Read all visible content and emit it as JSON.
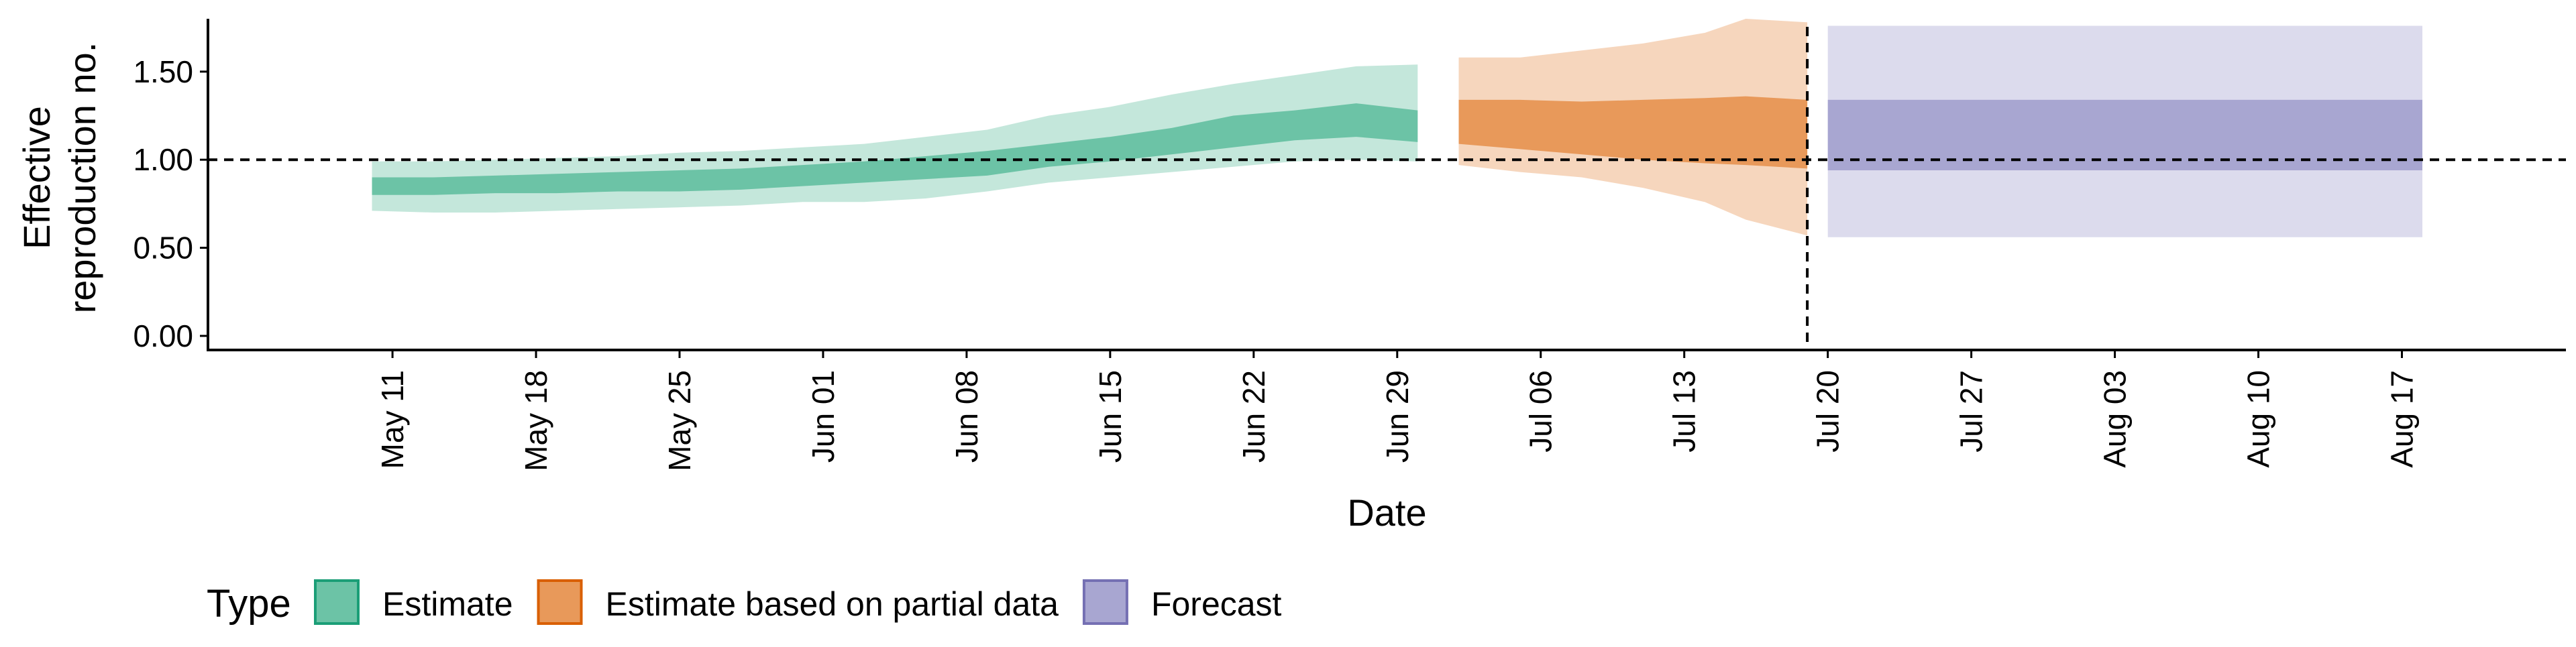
{
  "chart_data": {
    "type": "area",
    "title": "",
    "xlabel": "Date",
    "ylabel_lines": [
      "Effective",
      "reproduction no."
    ],
    "ylim": [
      -0.08,
      1.8
    ],
    "y_ticks": [
      0.0,
      0.5,
      1.0,
      1.5
    ],
    "y_tick_labels": [
      "0.00",
      "0.50",
      "1.00",
      "1.50"
    ],
    "xlim": [
      "2020-05-02",
      "2020-08-25"
    ],
    "x_ticks": [
      "2020-05-11",
      "2020-05-18",
      "2020-05-25",
      "2020-06-01",
      "2020-06-08",
      "2020-06-15",
      "2020-06-22",
      "2020-06-29",
      "2020-07-06",
      "2020-07-13",
      "2020-07-20",
      "2020-07-27",
      "2020-08-03",
      "2020-08-10",
      "2020-08-17"
    ],
    "x_tick_labels": [
      "May 11",
      "May 18",
      "May 25",
      "Jun 01",
      "Jun 08",
      "Jun 15",
      "Jun 22",
      "Jun 29",
      "Jul 06",
      "Jul 13",
      "Jul 20",
      "Jul 27",
      "Aug 03",
      "Aug 10",
      "Aug 17"
    ],
    "reference_line_y": 1.0,
    "vertical_line_x": "2020-07-19",
    "grid": false,
    "legend": {
      "title": "Type",
      "position": "bottom-left",
      "entries": [
        "Estimate",
        "Estimate based on partial data",
        "Forecast"
      ]
    },
    "colors": {
      "Estimate": "#6cc3a6",
      "Estimate based on partial data": "#e8995a",
      "Forecast": "#a8a6d1",
      "Estimate_border": "#1b9e77",
      "Estimate based on partial data_border": "#d95f02",
      "Forecast_border": "#7570b3"
    },
    "series": [
      {
        "name": "Estimate",
        "x": [
          "2020-05-10",
          "2020-05-13",
          "2020-05-16",
          "2020-05-19",
          "2020-05-22",
          "2020-05-25",
          "2020-05-28",
          "2020-05-31",
          "2020-06-03",
          "2020-06-06",
          "2020-06-09",
          "2020-06-12",
          "2020-06-15",
          "2020-06-18",
          "2020-06-21",
          "2020-06-24",
          "2020-06-27",
          "2020-06-30"
        ],
        "median": [
          0.85,
          0.85,
          0.86,
          0.86,
          0.87,
          0.88,
          0.89,
          0.91,
          0.93,
          0.95,
          0.98,
          1.03,
          1.06,
          1.11,
          1.17,
          1.21,
          1.25,
          1.22
        ],
        "lower_50": [
          0.8,
          0.8,
          0.81,
          0.81,
          0.82,
          0.82,
          0.83,
          0.85,
          0.87,
          0.89,
          0.91,
          0.96,
          0.99,
          1.03,
          1.07,
          1.11,
          1.13,
          1.1
        ],
        "upper_50": [
          0.9,
          0.9,
          0.91,
          0.92,
          0.93,
          0.94,
          0.95,
          0.97,
          0.99,
          1.02,
          1.05,
          1.09,
          1.13,
          1.18,
          1.25,
          1.28,
          1.32,
          1.28
        ],
        "lower_90": [
          0.71,
          0.7,
          0.7,
          0.71,
          0.72,
          0.73,
          0.74,
          0.76,
          0.76,
          0.78,
          0.82,
          0.87,
          0.9,
          0.93,
          0.96,
          0.99,
          1.0,
          0.99
        ],
        "upper_90": [
          0.99,
          0.99,
          1.0,
          1.01,
          1.02,
          1.04,
          1.05,
          1.07,
          1.09,
          1.13,
          1.17,
          1.25,
          1.3,
          1.37,
          1.43,
          1.48,
          1.53,
          1.54
        ]
      },
      {
        "name": "Estimate based on partial data",
        "x": [
          "2020-07-02",
          "2020-07-05",
          "2020-07-08",
          "2020-07-11",
          "2020-07-14",
          "2020-07-16",
          "2020-07-19"
        ],
        "median": [
          1.22,
          1.2,
          1.19,
          1.18,
          1.17,
          1.17,
          1.15
        ],
        "lower_50": [
          1.09,
          1.06,
          1.03,
          1.0,
          0.98,
          0.97,
          0.95
        ],
        "upper_50": [
          1.34,
          1.34,
          1.33,
          1.34,
          1.35,
          1.36,
          1.34
        ],
        "lower_90": [
          0.97,
          0.93,
          0.9,
          0.84,
          0.76,
          0.66,
          0.57
        ],
        "upper_90": [
          1.58,
          1.58,
          1.62,
          1.66,
          1.72,
          1.8,
          1.78
        ]
      },
      {
        "name": "Forecast",
        "x": [
          "2020-07-20",
          "2020-08-18"
        ],
        "median": [
          1.14,
          1.14
        ],
        "lower_50": [
          0.94,
          0.94
        ],
        "upper_50": [
          1.34,
          1.34
        ],
        "lower_90": [
          0.56,
          0.56
        ],
        "upper_90": [
          1.76,
          1.76
        ]
      }
    ]
  }
}
